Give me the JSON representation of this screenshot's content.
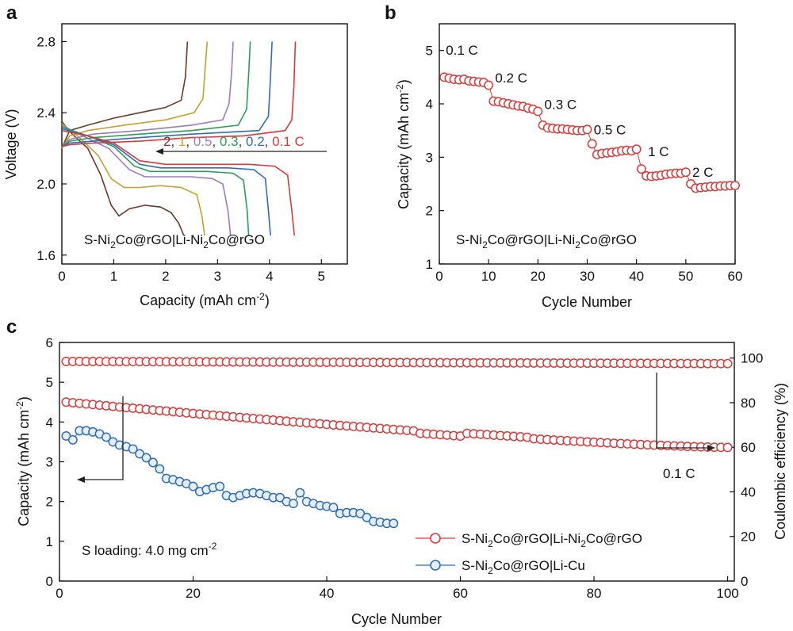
{
  "figure": {
    "panels": [
      "a",
      "b",
      "c"
    ]
  },
  "chart_data": [
    {
      "panel": "a",
      "type": "line",
      "xlabel": "Capacity (mAh cm",
      "xlabel_sup": "-2",
      "xlabel_end": ")",
      "ylabel": "Voltage (V)",
      "xlim": [
        0,
        5.5
      ],
      "ylim": [
        1.55,
        2.9
      ],
      "xticks": [
        "0",
        "1",
        "2",
        "3",
        "4",
        "5"
      ],
      "yticks": [
        "1.6",
        "2.0",
        "2.4",
        "2.8"
      ],
      "sample_label": {
        "p1": "S-Ni",
        "s1": "2",
        "p2": "Co@rGO|Li-Ni",
        "s2": "2",
        "p3": "Co@rGO"
      },
      "arrow_text": "arrow pointing left",
      "series": [
        {
          "name": "2",
          "color": "#6b3a2a",
          "discharge": [
            [
              0,
              2.35
            ],
            [
              0.2,
              2.28
            ],
            [
              0.5,
              2.2
            ],
            [
              0.75,
              2.05
            ],
            [
              0.95,
              1.88
            ],
            [
              1.1,
              1.82
            ],
            [
              1.3,
              1.86
            ],
            [
              1.6,
              1.88
            ],
            [
              1.9,
              1.87
            ],
            [
              2.1,
              1.84
            ],
            [
              2.25,
              1.78
            ],
            [
              2.35,
              1.71
            ]
          ],
          "charge": [
            [
              0,
              2.2
            ],
            [
              0.15,
              2.3
            ],
            [
              0.5,
              2.33
            ],
            [
              1.0,
              2.37
            ],
            [
              1.5,
              2.4
            ],
            [
              2.0,
              2.43
            ],
            [
              2.3,
              2.47
            ],
            [
              2.38,
              2.6
            ],
            [
              2.42,
              2.8
            ]
          ]
        },
        {
          "name": "1",
          "color": "#c6a02c",
          "discharge": [
            [
              0,
              2.34
            ],
            [
              0.3,
              2.27
            ],
            [
              0.7,
              2.16
            ],
            [
              0.95,
              2.03
            ],
            [
              1.2,
              1.98
            ],
            [
              1.5,
              1.98
            ],
            [
              1.9,
              1.99
            ],
            [
              2.3,
              1.98
            ],
            [
              2.6,
              1.94
            ],
            [
              2.7,
              1.82
            ],
            [
              2.75,
              1.71
            ]
          ],
          "charge": [
            [
              0,
              2.2
            ],
            [
              0.15,
              2.27
            ],
            [
              0.5,
              2.3
            ],
            [
              1.2,
              2.33
            ],
            [
              2.0,
              2.36
            ],
            [
              2.55,
              2.4
            ],
            [
              2.72,
              2.48
            ],
            [
              2.76,
              2.65
            ],
            [
              2.8,
              2.8
            ]
          ]
        },
        {
          "name": "0.5",
          "color": "#9b7bc0",
          "discharge": [
            [
              0,
              2.33
            ],
            [
              0.4,
              2.27
            ],
            [
              0.9,
              2.2
            ],
            [
              1.3,
              2.08
            ],
            [
              1.6,
              2.04
            ],
            [
              2.0,
              2.04
            ],
            [
              2.5,
              2.04
            ],
            [
              2.9,
              2.03
            ],
            [
              3.1,
              2.0
            ],
            [
              3.2,
              1.85
            ],
            [
              3.25,
              1.71
            ]
          ],
          "charge": [
            [
              0,
              2.21
            ],
            [
              0.15,
              2.25
            ],
            [
              0.6,
              2.28
            ],
            [
              1.5,
              2.3
            ],
            [
              2.5,
              2.33
            ],
            [
              3.1,
              2.36
            ],
            [
              3.22,
              2.45
            ],
            [
              3.27,
              2.62
            ],
            [
              3.3,
              2.8
            ]
          ]
        },
        {
          "name": "0.3",
          "color": "#2a9d5a",
          "discharge": [
            [
              0,
              2.32
            ],
            [
              0.5,
              2.27
            ],
            [
              1.0,
              2.21
            ],
            [
              1.4,
              2.1
            ],
            [
              1.7,
              2.07
            ],
            [
              2.2,
              2.07
            ],
            [
              2.8,
              2.07
            ],
            [
              3.3,
              2.06
            ],
            [
              3.5,
              2.02
            ],
            [
              3.57,
              1.85
            ],
            [
              3.6,
              1.71
            ]
          ],
          "charge": [
            [
              0,
              2.21
            ],
            [
              0.15,
              2.24
            ],
            [
              0.6,
              2.26
            ],
            [
              1.5,
              2.28
            ],
            [
              2.5,
              2.3
            ],
            [
              3.4,
              2.33
            ],
            [
              3.56,
              2.42
            ],
            [
              3.6,
              2.62
            ],
            [
              3.63,
              2.8
            ]
          ]
        },
        {
          "name": "0.2",
          "color": "#2f6db3",
          "discharge": [
            [
              0,
              2.31
            ],
            [
              0.5,
              2.27
            ],
            [
              1.0,
              2.22
            ],
            [
              1.5,
              2.11
            ],
            [
              1.9,
              2.09
            ],
            [
              2.5,
              2.09
            ],
            [
              3.2,
              2.09
            ],
            [
              3.7,
              2.08
            ],
            [
              3.92,
              2.03
            ],
            [
              3.98,
              1.85
            ],
            [
              4.02,
              1.71
            ]
          ],
          "charge": [
            [
              0,
              2.21
            ],
            [
              0.15,
              2.23
            ],
            [
              0.6,
              2.24
            ],
            [
              1.5,
              2.26
            ],
            [
              2.5,
              2.28
            ],
            [
              3.8,
              2.3
            ],
            [
              3.98,
              2.38
            ],
            [
              4.02,
              2.6
            ],
            [
              4.05,
              2.8
            ]
          ]
        },
        {
          "name": "0.1 C",
          "color": "#d93a3a",
          "discharge": [
            [
              0,
              2.3
            ],
            [
              0.5,
              2.27
            ],
            [
              1.0,
              2.23
            ],
            [
              1.5,
              2.13
            ],
            [
              2.0,
              2.11
            ],
            [
              2.8,
              2.11
            ],
            [
              3.6,
              2.11
            ],
            [
              4.1,
              2.1
            ],
            [
              4.35,
              2.05
            ],
            [
              4.43,
              1.85
            ],
            [
              4.48,
              1.71
            ]
          ],
          "charge": [
            [
              0,
              2.21
            ],
            [
              0.15,
              2.22
            ],
            [
              0.6,
              2.23
            ],
            [
              1.5,
              2.24
            ],
            [
              2.5,
              2.26
            ],
            [
              3.5,
              2.27
            ],
            [
              4.3,
              2.3
            ],
            [
              4.43,
              2.36
            ],
            [
              4.47,
              2.55
            ],
            [
              4.5,
              2.8
            ]
          ]
        }
      ]
    },
    {
      "panel": "b",
      "type": "scatter",
      "xlabel": "Cycle Number",
      "ylabel": "Capacity (mAh cm",
      "ylabel_sup": "-2",
      "ylabel_end": ")",
      "xlim": [
        0,
        60
      ],
      "ylim": [
        1,
        5.5
      ],
      "xticks": [
        "0",
        "10",
        "20",
        "30",
        "40",
        "50",
        "60"
      ],
      "yticks": [
        "1",
        "2",
        "3",
        "4",
        "5"
      ],
      "sample_label": {
        "p1": "S-Ni",
        "s1": "2",
        "p2": "Co@rGO|Li-Ni",
        "s2": "2",
        "p3": "Co@rGO"
      },
      "rate_labels": [
        "0.1 C",
        "0.2 C",
        "0.3 C",
        "0.5 C",
        "1 C",
        "2 C"
      ],
      "color": "#d93a3a",
      "x": [
        1,
        2,
        3,
        4,
        5,
        6,
        7,
        8,
        9,
        10,
        11,
        12,
        13,
        14,
        15,
        16,
        17,
        18,
        19,
        20,
        21,
        22,
        23,
        24,
        25,
        26,
        27,
        28,
        29,
        30,
        31,
        32,
        33,
        34,
        35,
        36,
        37,
        38,
        39,
        40,
        41,
        42,
        43,
        44,
        45,
        46,
        47,
        48,
        49,
        50,
        51,
        52,
        53,
        54,
        55,
        56,
        57,
        58,
        59,
        60
      ],
      "values": [
        4.5,
        4.48,
        4.46,
        4.45,
        4.46,
        4.43,
        4.42,
        4.41,
        4.4,
        4.35,
        4.05,
        4.04,
        4.02,
        4.0,
        3.98,
        3.96,
        3.95,
        3.92,
        3.9,
        3.86,
        3.6,
        3.55,
        3.54,
        3.53,
        3.53,
        3.52,
        3.51,
        3.5,
        3.5,
        3.52,
        3.25,
        3.05,
        3.07,
        3.08,
        3.09,
        3.1,
        3.12,
        3.13,
        3.12,
        3.15,
        2.78,
        2.65,
        2.64,
        2.65,
        2.66,
        2.68,
        2.69,
        2.7,
        2.7,
        2.72,
        2.5,
        2.42,
        2.43,
        2.44,
        2.45,
        2.45,
        2.46,
        2.46,
        2.47,
        2.47
      ]
    },
    {
      "panel": "c",
      "type": "scatter",
      "xlabel": "Cycle Number",
      "ylabel": "Capacity (mAh cm",
      "ylabel_sup": "-2",
      "ylabel_end": ")",
      "y2label": "Coulombic efficiency (%)",
      "xlim": [
        0,
        101
      ],
      "ylim": [
        0,
        6
      ],
      "y2lim": [
        0,
        107
      ],
      "xticks": [
        "0",
        "20",
        "40",
        "60",
        "80",
        "100"
      ],
      "yticks": [
        "0",
        "1",
        "2",
        "3",
        "4",
        "5",
        "6"
      ],
      "y2ticks": [
        "0",
        "20",
        "40",
        "60",
        "80",
        "100"
      ],
      "annotation_loading": {
        "pre": "S loading: 4.0 mg cm",
        "sup": "-2"
      },
      "rate_label": "0.1 C",
      "legend": [
        {
          "p1": "S-Ni",
          "s1": "2",
          "p2": "Co@rGO|Li-Ni",
          "s2": "2",
          "p3": "Co@rGO",
          "color": "#d93a3a"
        },
        {
          "p1": "S-Ni",
          "s1": "2",
          "p2": "Co@rGO|Li-Cu",
          "s2": "",
          "p3": "",
          "color": "#2f6db3"
        }
      ],
      "series": [
        {
          "name": "S-Ni2Co@rGO|Li-Ni2Co@rGO capacity",
          "color": "#d93a3a",
          "axis": "left",
          "start": 4.5,
          "end": 3.36,
          "count": 100
        },
        {
          "name": "S-Ni2Co@rGO|Li-Ni2Co@rGO CE",
          "color": "#d93a3a",
          "axis": "right",
          "start": 98.5,
          "end": 97.5,
          "count": 100
        },
        {
          "name": "S-Ni2Co@rGO|Li-Cu capacity",
          "color": "#2f6db3",
          "axis": "left",
          "x": [
            1,
            2,
            3,
            4,
            5,
            6,
            7,
            8,
            9,
            10,
            11,
            12,
            13,
            14,
            15,
            16,
            17,
            18,
            19,
            20,
            21,
            22,
            23,
            24,
            25,
            26,
            27,
            28,
            29,
            30,
            31,
            32,
            33,
            34,
            35,
            36,
            37,
            38,
            39,
            40,
            41,
            42,
            43,
            44,
            45,
            46,
            47,
            48,
            49,
            50
          ],
          "values": [
            3.65,
            3.55,
            3.78,
            3.78,
            3.75,
            3.7,
            3.62,
            3.5,
            3.42,
            3.38,
            3.32,
            3.2,
            3.1,
            2.98,
            2.82,
            2.58,
            2.55,
            2.5,
            2.45,
            2.38,
            2.25,
            2.3,
            2.35,
            2.38,
            2.15,
            2.1,
            2.15,
            2.2,
            2.22,
            2.2,
            2.15,
            2.1,
            2.1,
            2.0,
            1.95,
            2.22,
            2.0,
            1.95,
            1.9,
            1.88,
            1.85,
            1.7,
            1.72,
            1.72,
            1.7,
            1.6,
            1.5,
            1.48,
            1.45,
            1.45
          ]
        }
      ]
    }
  ]
}
